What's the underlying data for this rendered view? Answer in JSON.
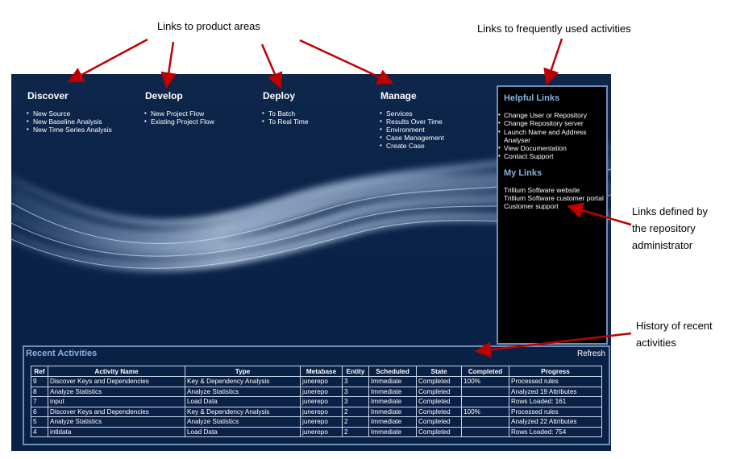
{
  "callouts": {
    "product_areas": "Links to product areas",
    "frequent": "Links to frequently used activities",
    "admin_line1": "Links defined by",
    "admin_line2": "the repository",
    "admin_line3": "administrator",
    "history_line1": "History of recent",
    "history_line2": "activities"
  },
  "areas": [
    {
      "title": "Discover",
      "links": [
        "New Source",
        "New Baseline Analysis",
        "New Time Series Analysis"
      ]
    },
    {
      "title": "Develop",
      "links": [
        "New Project Flow",
        "Existing Project Flow"
      ]
    },
    {
      "title": "Deploy",
      "links": [
        "To Batch",
        "To Real Time"
      ]
    },
    {
      "title": "Manage",
      "links": [
        "Services",
        "Results Over Time",
        "Environment",
        "Case Management",
        "Create Case"
      ]
    }
  ],
  "helpful": {
    "title": "Helpful Links",
    "links": [
      "Change User or Repository",
      "Change Repository server",
      "Launch Name and Address",
      "Analyser",
      "View Documentation",
      "Contact Support"
    ]
  },
  "mylinks": {
    "title": "My Links",
    "links": [
      "Trillium Software website",
      "Trillium Software customer portal",
      "Customer support"
    ]
  },
  "recent": {
    "title": "Recent Activities",
    "refresh": "Refresh",
    "columns": [
      "Ref",
      "Activity Name",
      "Type",
      "Metabase",
      "Entity",
      "Scheduled",
      "State",
      "Completed",
      "Progress"
    ],
    "rows": [
      [
        "9",
        "Discover Keys and Dependencies",
        "Key & Dependency Analysis",
        "junerepo",
        "3",
        "Immediate",
        "Completed",
        "100%",
        "Processed rules"
      ],
      [
        "8",
        "Analyze Statistics",
        "Analyze Statistics",
        "junerepo",
        "3",
        "Immediate",
        "Completed",
        "",
        "Analyzed 19 Attributes"
      ],
      [
        "7",
        "input",
        "Load Data",
        "junerepo",
        "3",
        "Immediate",
        "Completed",
        "",
        "Rows Loaded: 161"
      ],
      [
        "6",
        "Discover Keys and Dependencies",
        "Key & Dependency Analysis",
        "junerepo",
        "2",
        "Immediate",
        "Completed",
        "100%",
        "Processed rules"
      ],
      [
        "5",
        "Analyze Statistics",
        "Analyze Statistics",
        "junerepo",
        "2",
        "Immediate",
        "Completed",
        "",
        "Analyzed 22 Attributes"
      ],
      [
        "4",
        "intldata",
        "Load Data",
        "junerepo",
        "2",
        "Immediate",
        "Completed",
        "",
        "Rows Loaded: 754"
      ]
    ]
  },
  "colors": {
    "panel": "#0a2247",
    "accent": "#8bb0e0",
    "arrow": "#c00000"
  }
}
